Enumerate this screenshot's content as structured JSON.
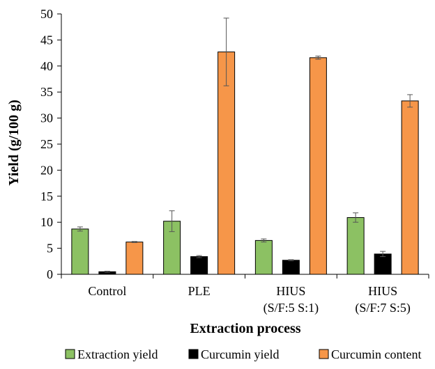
{
  "chart_data": {
    "type": "bar",
    "title": "",
    "xlabel": "Extraction process",
    "ylabel": "Yield (g/100 g)",
    "ylim": [
      0,
      50
    ],
    "ytick_step": 5,
    "grid": false,
    "legend_position": "bottom",
    "categories": [
      [
        "Control"
      ],
      [
        "PLE"
      ],
      [
        "HIUS",
        "(S/F:5 S:1)"
      ],
      [
        "HIUS",
        "(S/F:7 S:5)"
      ]
    ],
    "series": [
      {
        "name": "Extraction yield",
        "color": "#8cc163",
        "values": [
          8.7,
          10.2,
          6.5,
          10.9
        ],
        "errors": [
          0.4,
          2.0,
          0.3,
          0.9
        ]
      },
      {
        "name": "Curcumin yield",
        "color": "#000000",
        "values": [
          0.5,
          3.4,
          2.7,
          3.9
        ],
        "errors": [
          0.1,
          0.2,
          0.1,
          0.5
        ]
      },
      {
        "name": "Curcumin content",
        "color": "#f69649",
        "values": [
          6.2,
          42.7,
          41.6,
          33.3
        ],
        "errors": [
          0.1,
          6.5,
          0.3,
          1.2
        ]
      }
    ]
  }
}
